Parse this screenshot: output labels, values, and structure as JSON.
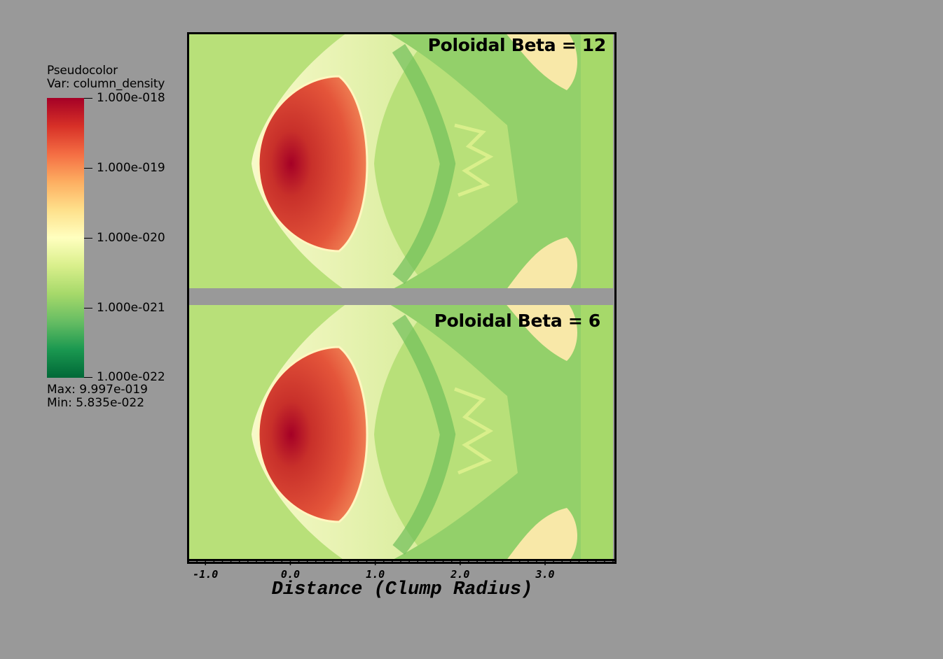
{
  "legend": {
    "title_line1": "Pseudocolor",
    "title_line2": "Var: column_density",
    "tick_labels": [
      "1.000e-018",
      "1.000e-019",
      "1.000e-020",
      "1.000e-021",
      "1.000e-022"
    ],
    "max_label": "Max:  9.997e-019",
    "min_label": "Min:  5.835e-022",
    "colormap": [
      "#a50026",
      "#d73027",
      "#f46d43",
      "#fdae61",
      "#fee08b",
      "#ffffbf",
      "#d9ef8b",
      "#a6d96a",
      "#66bd63",
      "#1a9850",
      "#006837"
    ]
  },
  "panels": [
    {
      "label": "Poloidal Beta = 12"
    },
    {
      "label": "Poloidal Beta =  6"
    }
  ],
  "chart_data": {
    "type": "heatmap",
    "xlabel": "Distance (Clump Radius)",
    "x_tick_labels": [
      "-1.0",
      "0.0",
      "1.0",
      "2.0",
      "3.0"
    ],
    "x_ticks": [
      -1.0,
      0.0,
      1.0,
      2.0,
      3.0
    ],
    "xlim": [
      -1.2,
      3.8
    ],
    "colorbar_range": [
      1e-22,
      1e-18
    ],
    "scale": "log",
    "series": [
      {
        "name": "Poloidal Beta = 12"
      },
      {
        "name": "Poloidal Beta =  6"
      }
    ]
  }
}
